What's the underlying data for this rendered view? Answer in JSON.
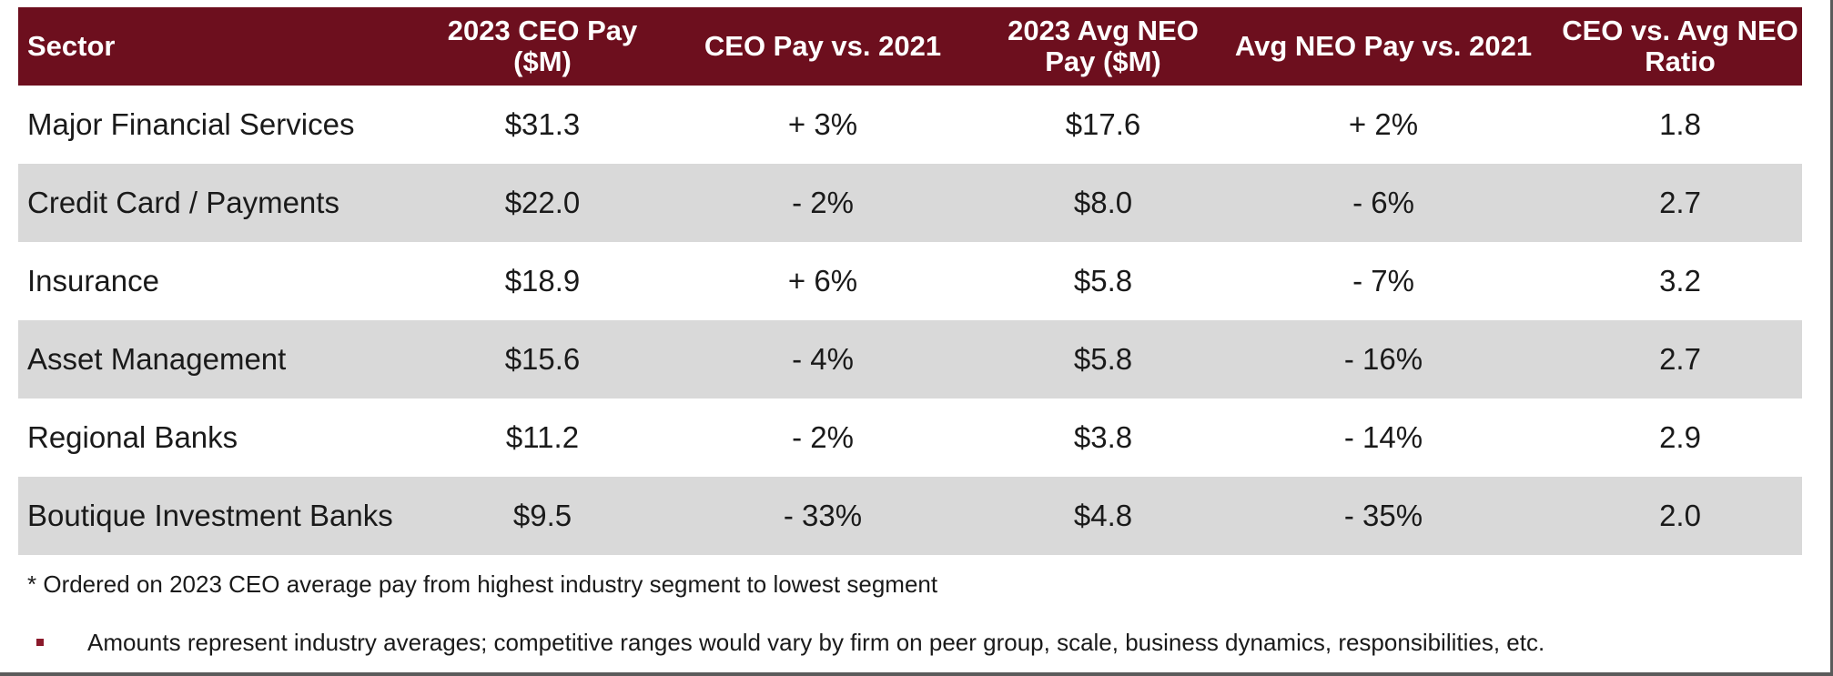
{
  "table": {
    "headers": [
      "Sector",
      "2023 CEO Pay ($M)",
      "CEO Pay vs. 2021",
      "2023 Avg NEO Pay ($M)",
      "Avg NEO Pay vs. 2021",
      "CEO vs. Avg NEO Ratio"
    ],
    "rows": [
      [
        "Major Financial Services",
        "$31.3",
        "+ 3%",
        "$17.6",
        "+ 2%",
        "1.8"
      ],
      [
        "Credit Card / Payments",
        "$22.0",
        "- 2%",
        "$8.0",
        "- 6%",
        "2.7"
      ],
      [
        "Insurance",
        "$18.9",
        "+ 6%",
        "$5.8",
        "- 7%",
        "3.2"
      ],
      [
        "Asset Management",
        "$15.6",
        "- 4%",
        "$5.8",
        "- 16%",
        "2.7"
      ],
      [
        "Regional Banks",
        "$11.2",
        "- 2%",
        "$3.8",
        "- 14%",
        "2.9"
      ],
      [
        "Boutique Investment Banks",
        "$9.5",
        "- 33%",
        "$4.8",
        "- 35%",
        "2.0"
      ]
    ]
  },
  "footnote": "* Ordered on 2023 CEO average pay from highest industry segment to lowest segment",
  "bullets": [
    "Amounts represent industry averages; competitive ranges would vary by firm on peer group, scale, business dynamics, responsibilities, etc."
  ],
  "colors": {
    "header_bg": "#6d0f1e",
    "row_shade": "#d9d9d9",
    "bullet": "#8b1a2b"
  }
}
